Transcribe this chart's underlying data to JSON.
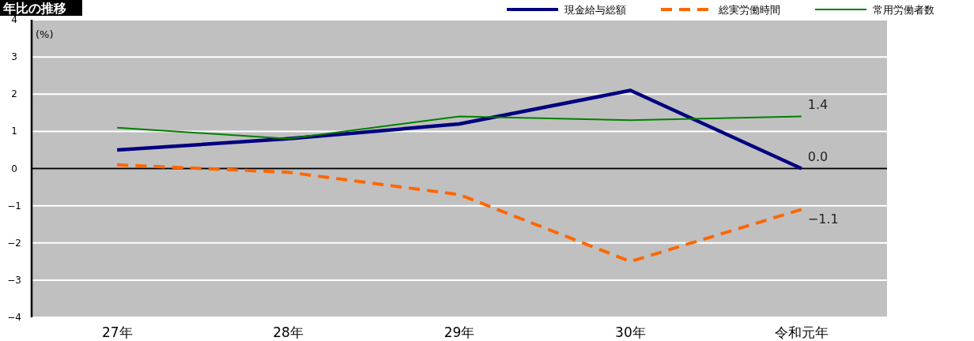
{
  "chart_data": {
    "type": "line",
    "title": "年比の推移",
    "ylabel": "(%)",
    "categories": [
      "27年",
      "28年",
      "29年",
      "30年",
      "令和元年"
    ],
    "series": [
      {
        "name": "現金給与総額",
        "color": "#000080",
        "values": [
          0.5,
          0.8,
          1.2,
          2.1,
          0.0
        ],
        "line_style": "solid",
        "value_labels": [
          null,
          null,
          null,
          null,
          "0.0"
        ]
      },
      {
        "name": "総実労働時間",
        "color": "#ff6600",
        "values": [
          0.1,
          -0.1,
          -0.7,
          -2.5,
          -1.1
        ],
        "line_style": "dashed",
        "value_labels": [
          null,
          null,
          null,
          null,
          "−1.1"
        ]
      },
      {
        "name": "常用労働者数",
        "color": "#008000",
        "values": [
          1.1,
          0.8,
          1.4,
          1.3,
          1.4
        ],
        "line_style": "solid",
        "value_labels": [
          null,
          null,
          null,
          null,
          "1.4"
        ]
      }
    ],
    "ylim": [
      -4,
      4
    ],
    "yticks": [
      {
        "value": -4,
        "label": "−4"
      },
      {
        "value": -3,
        "label": "−3"
      },
      {
        "value": -2,
        "label": "−2"
      },
      {
        "value": -1,
        "label": "−1"
      },
      0,
      1,
      2,
      3,
      4
    ],
    "ref_lines": [
      {
        "axis": "y",
        "value": 0,
        "color": "#000000"
      }
    ],
    "grid": "y",
    "legend": "top right",
    "marker": "none"
  }
}
